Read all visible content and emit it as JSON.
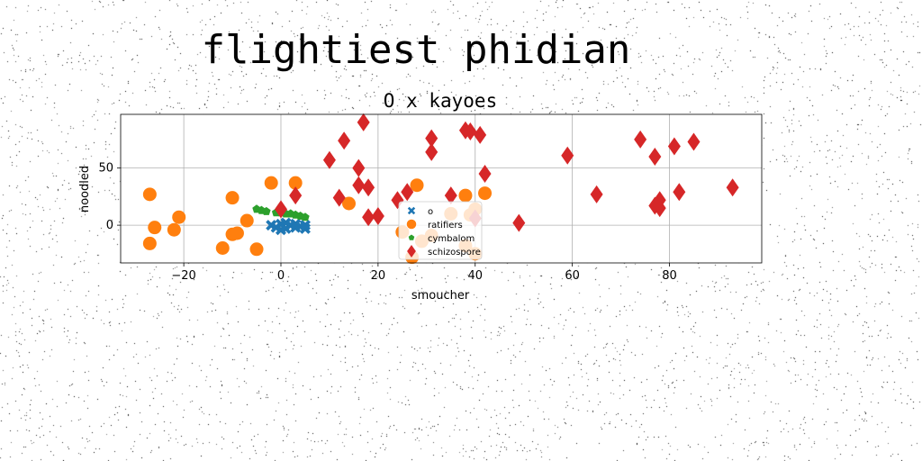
{
  "chart_data": {
    "type": "scatter",
    "suptitle": "flightiest phidian",
    "title": "O x kayoes",
    "xlabel": "smoucher",
    "ylabel": "noodled",
    "xlim": [
      -33,
      99
    ],
    "ylim": [
      -33,
      97
    ],
    "xticks": [
      -20,
      0,
      20,
      40,
      60,
      80
    ],
    "yticks": [
      0,
      50
    ],
    "grid": true,
    "legend_position": "lower-center",
    "series": [
      {
        "name": "o",
        "marker": "x-cross",
        "color": "#1f77b4",
        "points": [
          [
            -2,
            0
          ],
          [
            -1,
            -2
          ],
          [
            0,
            1
          ],
          [
            1,
            -3
          ],
          [
            1,
            2
          ],
          [
            2,
            0
          ],
          [
            3,
            -2
          ],
          [
            3,
            1
          ],
          [
            4,
            -1
          ],
          [
            5,
            -3
          ],
          [
            5,
            0
          ],
          [
            0,
            -4
          ]
        ]
      },
      {
        "name": "ratifiers",
        "marker": "circle",
        "color": "#ff7f0e",
        "points": [
          [
            -27,
            27
          ],
          [
            -26,
            -2
          ],
          [
            -27,
            -16
          ],
          [
            -22,
            -4
          ],
          [
            -21,
            7
          ],
          [
            -12,
            -20
          ],
          [
            -10,
            24
          ],
          [
            -10,
            -8
          ],
          [
            -9,
            -7
          ],
          [
            -7,
            4
          ],
          [
            -5,
            -21
          ],
          [
            -2,
            37
          ],
          [
            3,
            37
          ],
          [
            14,
            19
          ],
          [
            28,
            35
          ],
          [
            35,
            10
          ],
          [
            38,
            26
          ],
          [
            39,
            9
          ],
          [
            42,
            28
          ],
          [
            25,
            -6
          ],
          [
            27,
            -28
          ],
          [
            29,
            -14
          ],
          [
            31,
            -9
          ],
          [
            38,
            -18
          ],
          [
            40,
            -25
          ],
          [
            40,
            14
          ]
        ]
      },
      {
        "name": "cymbalom",
        "marker": "pentagon",
        "color": "#2ca02c",
        "points": [
          [
            -5,
            14
          ],
          [
            -3,
            12
          ],
          [
            -1,
            11
          ],
          [
            1,
            10
          ],
          [
            3,
            9
          ],
          [
            5,
            7
          ],
          [
            -4,
            13
          ],
          [
            0,
            11
          ],
          [
            2,
            10
          ],
          [
            4,
            8
          ]
        ]
      },
      {
        "name": "schizospore",
        "marker": "thin_diamond",
        "color": "#d62728",
        "points": [
          [
            0,
            14
          ],
          [
            3,
            26
          ],
          [
            10,
            57
          ],
          [
            12,
            24
          ],
          [
            13,
            74
          ],
          [
            16,
            50
          ],
          [
            16,
            35
          ],
          [
            17,
            90
          ],
          [
            18,
            33
          ],
          [
            18,
            7
          ],
          [
            20,
            8
          ],
          [
            24,
            22
          ],
          [
            26,
            29
          ],
          [
            31,
            76
          ],
          [
            31,
            64
          ],
          [
            35,
            26
          ],
          [
            38,
            83
          ],
          [
            39,
            82
          ],
          [
            41,
            79
          ],
          [
            42,
            45
          ],
          [
            49,
            2
          ],
          [
            59,
            61
          ],
          [
            65,
            27
          ],
          [
            74,
            75
          ],
          [
            77,
            60
          ],
          [
            77,
            17
          ],
          [
            78,
            15
          ],
          [
            78,
            22
          ],
          [
            81,
            69
          ],
          [
            82,
            29
          ],
          [
            85,
            73
          ],
          [
            93,
            33
          ],
          [
            40,
            6
          ]
        ]
      }
    ]
  }
}
